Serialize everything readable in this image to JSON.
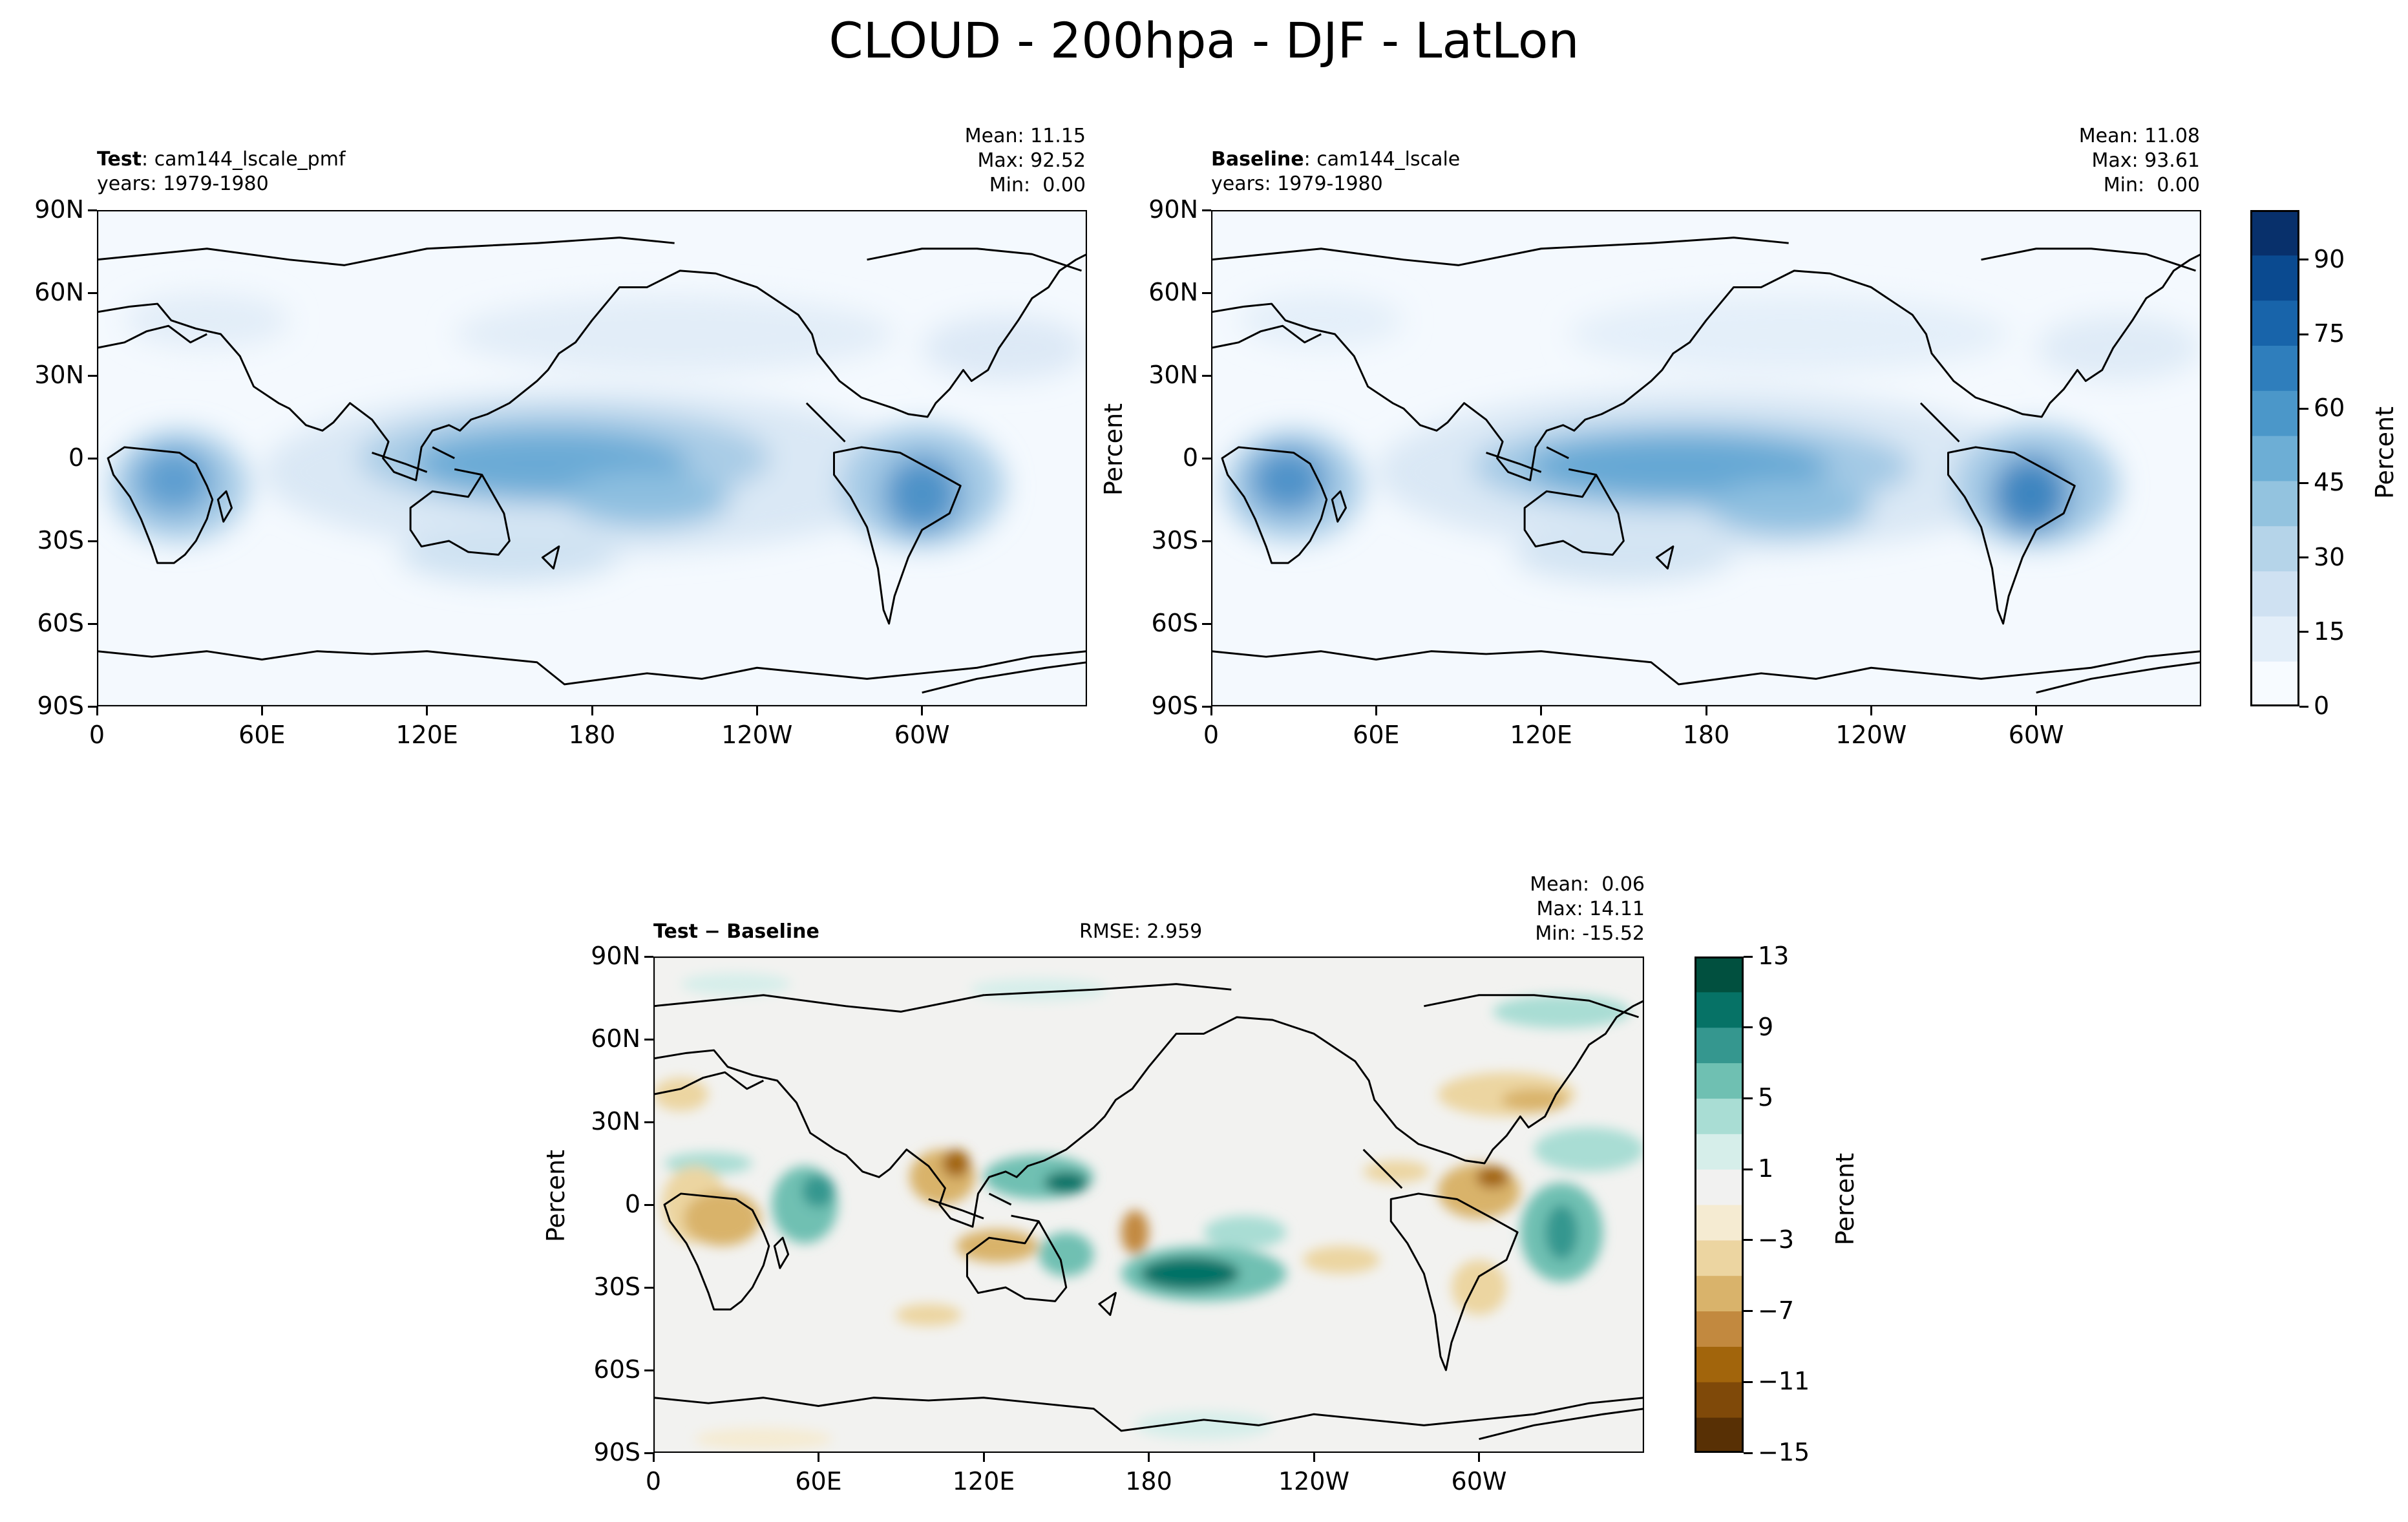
{
  "figure_title": "CLOUD - 200hpa - DJF - LatLon",
  "axes": {
    "lat_ticks": [
      "90N",
      "60N",
      "30N",
      "0",
      "30S",
      "60S",
      "90S"
    ],
    "lon_ticks": [
      "0",
      "60E",
      "120E",
      "180",
      "120W",
      "60W"
    ]
  },
  "panels": {
    "test": {
      "role": "Test",
      "name": "cam144_lscale_pmf",
      "years": "years: 1979-1980",
      "mean": "Mean: 11.15",
      "max": "Max: 92.52",
      "min": "Min:  0.00"
    },
    "baseline": {
      "role": "Baseline",
      "name": "cam144_lscale",
      "years": "years: 1979-1980",
      "mean": "Mean: 11.08",
      "max": "Max: 93.61",
      "min": "Min:  0.00",
      "ylabel": "Percent"
    },
    "diff": {
      "title_a": "Test",
      "title_op": "−",
      "title_b": "Baseline",
      "rmse": "RMSE: 2.959",
      "mean": "Mean:  0.06",
      "max": "Max: 14.11",
      "min": "Min: -15.52",
      "ylabel": "Percent"
    }
  },
  "colorbars": {
    "top": {
      "label": "Percent",
      "ticks": [
        "0",
        "15",
        "30",
        "45",
        "60",
        "75",
        "90"
      ],
      "levels": [
        0,
        5,
        10,
        15,
        20,
        25,
        30,
        35,
        40,
        45,
        50,
        55,
        60,
        65,
        70,
        75,
        80,
        85,
        90,
        95,
        100
      ],
      "colors": [
        "#f7fbff",
        "#e3eef9",
        "#cfe1f2",
        "#b5d4e9",
        "#93c3df",
        "#6daed5",
        "#4b97c9",
        "#2f7ebc",
        "#1864aa",
        "#0a4a90",
        "#08306b"
      ]
    },
    "diff": {
      "label": "Percent",
      "ticks": [
        "13",
        "9",
        "5",
        "1",
        "−3",
        "−7",
        "−11",
        "−15"
      ],
      "levels": [
        -15,
        -13,
        -11,
        -9,
        -7,
        -5,
        -3,
        -1,
        1,
        3,
        5,
        7,
        9,
        11,
        13
      ],
      "colors": [
        "#583005",
        "#7f4909",
        "#a2650c",
        "#c2893f",
        "#d9b36b",
        "#ecd5a1",
        "#f5ebd2",
        "#f1f1f0",
        "#d6eeea",
        "#a9ddd4",
        "#6fc0b2",
        "#35978f",
        "#067266",
        "#01503f"
      ]
    }
  }
}
